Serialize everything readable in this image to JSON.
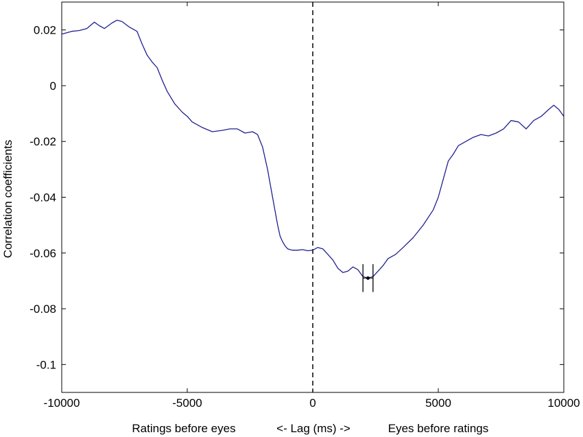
{
  "chart_data": {
    "type": "line",
    "title": "",
    "xlabel": "Ratings before eyes     <- Lag (ms) ->     Eyes before ratings",
    "xlabel_parts": [
      "Ratings before eyes",
      "<- Lag (ms) ->",
      "Eyes before ratings"
    ],
    "ylabel": "Correlation coefficients",
    "xlim": [
      -10000,
      10000
    ],
    "ylim": [
      -0.11,
      0.03
    ],
    "xticks": [
      -10000,
      -5000,
      0,
      5000,
      10000
    ],
    "xtick_labels": [
      "-10000",
      "-5000",
      "0",
      "5000",
      "10000"
    ],
    "yticks": [
      -0.1,
      -0.08,
      -0.06,
      -0.04,
      -0.02,
      0,
      0.02
    ],
    "ytick_labels": [
      "-0.1",
      "-0.08",
      "-0.06",
      "-0.04",
      "-0.02",
      "0",
      "0.02"
    ],
    "grid": false,
    "series_color": "#1f1f8f",
    "series": [
      {
        "x": [
          -10000,
          -9600,
          -9300,
          -9000,
          -8700,
          -8500,
          -8300,
          -8000,
          -7800,
          -7600,
          -7300,
          -7000,
          -6800,
          -6600,
          -6400,
          -6200,
          -6000,
          -5800,
          -5500,
          -5200,
          -5000,
          -4800,
          -4600,
          -4400,
          -4000,
          -3600,
          -3300,
          -3000,
          -2700,
          -2400,
          -2200,
          -2000,
          -1800,
          -1600,
          -1400,
          -1300,
          -1200,
          -1100,
          -1000,
          -900,
          -800,
          -600,
          -400,
          -200,
          0,
          200,
          400,
          600,
          800,
          1000,
          1200,
          1400,
          1600,
          1800,
          2000,
          2200,
          2400,
          2600,
          2800,
          3000,
          3300,
          3600,
          4000,
          4400,
          4800,
          5000,
          5200,
          5400,
          5600,
          5800,
          6000,
          6400,
          6700,
          7000,
          7300,
          7600,
          7900,
          8200,
          8500,
          8800,
          9100,
          9400,
          9600,
          9800,
          10000
        ],
        "y": [
          0.0185,
          0.0195,
          0.0198,
          0.0205,
          0.0228,
          0.0215,
          0.0205,
          0.0225,
          0.0235,
          0.023,
          0.021,
          0.0195,
          0.015,
          0.011,
          0.0085,
          0.0065,
          0.002,
          -0.002,
          -0.0065,
          -0.0095,
          -0.011,
          -0.013,
          -0.014,
          -0.015,
          -0.0165,
          -0.016,
          -0.0155,
          -0.0155,
          -0.017,
          -0.0165,
          -0.0175,
          -0.022,
          -0.03,
          -0.04,
          -0.05,
          -0.054,
          -0.056,
          -0.0575,
          -0.0585,
          -0.0588,
          -0.059,
          -0.059,
          -0.0588,
          -0.0592,
          -0.059,
          -0.058,
          -0.0585,
          -0.0605,
          -0.0625,
          -0.0655,
          -0.067,
          -0.0665,
          -0.065,
          -0.066,
          -0.0685,
          -0.069,
          -0.0685,
          -0.0665,
          -0.0645,
          -0.062,
          -0.0605,
          -0.058,
          -0.0545,
          -0.05,
          -0.0445,
          -0.04,
          -0.0335,
          -0.027,
          -0.0245,
          -0.0215,
          -0.0205,
          -0.0185,
          -0.0175,
          -0.018,
          -0.017,
          -0.0155,
          -0.0125,
          -0.013,
          -0.0155,
          -0.0125,
          -0.011,
          -0.0085,
          -0.007,
          -0.0085,
          -0.011
        ]
      }
    ],
    "vline_x": 0,
    "vline_style": "dashed",
    "marker": {
      "x": 2200,
      "y": -0.069,
      "bar_left": 2000,
      "bar_right": 2400,
      "half_height": 0.005
    }
  }
}
